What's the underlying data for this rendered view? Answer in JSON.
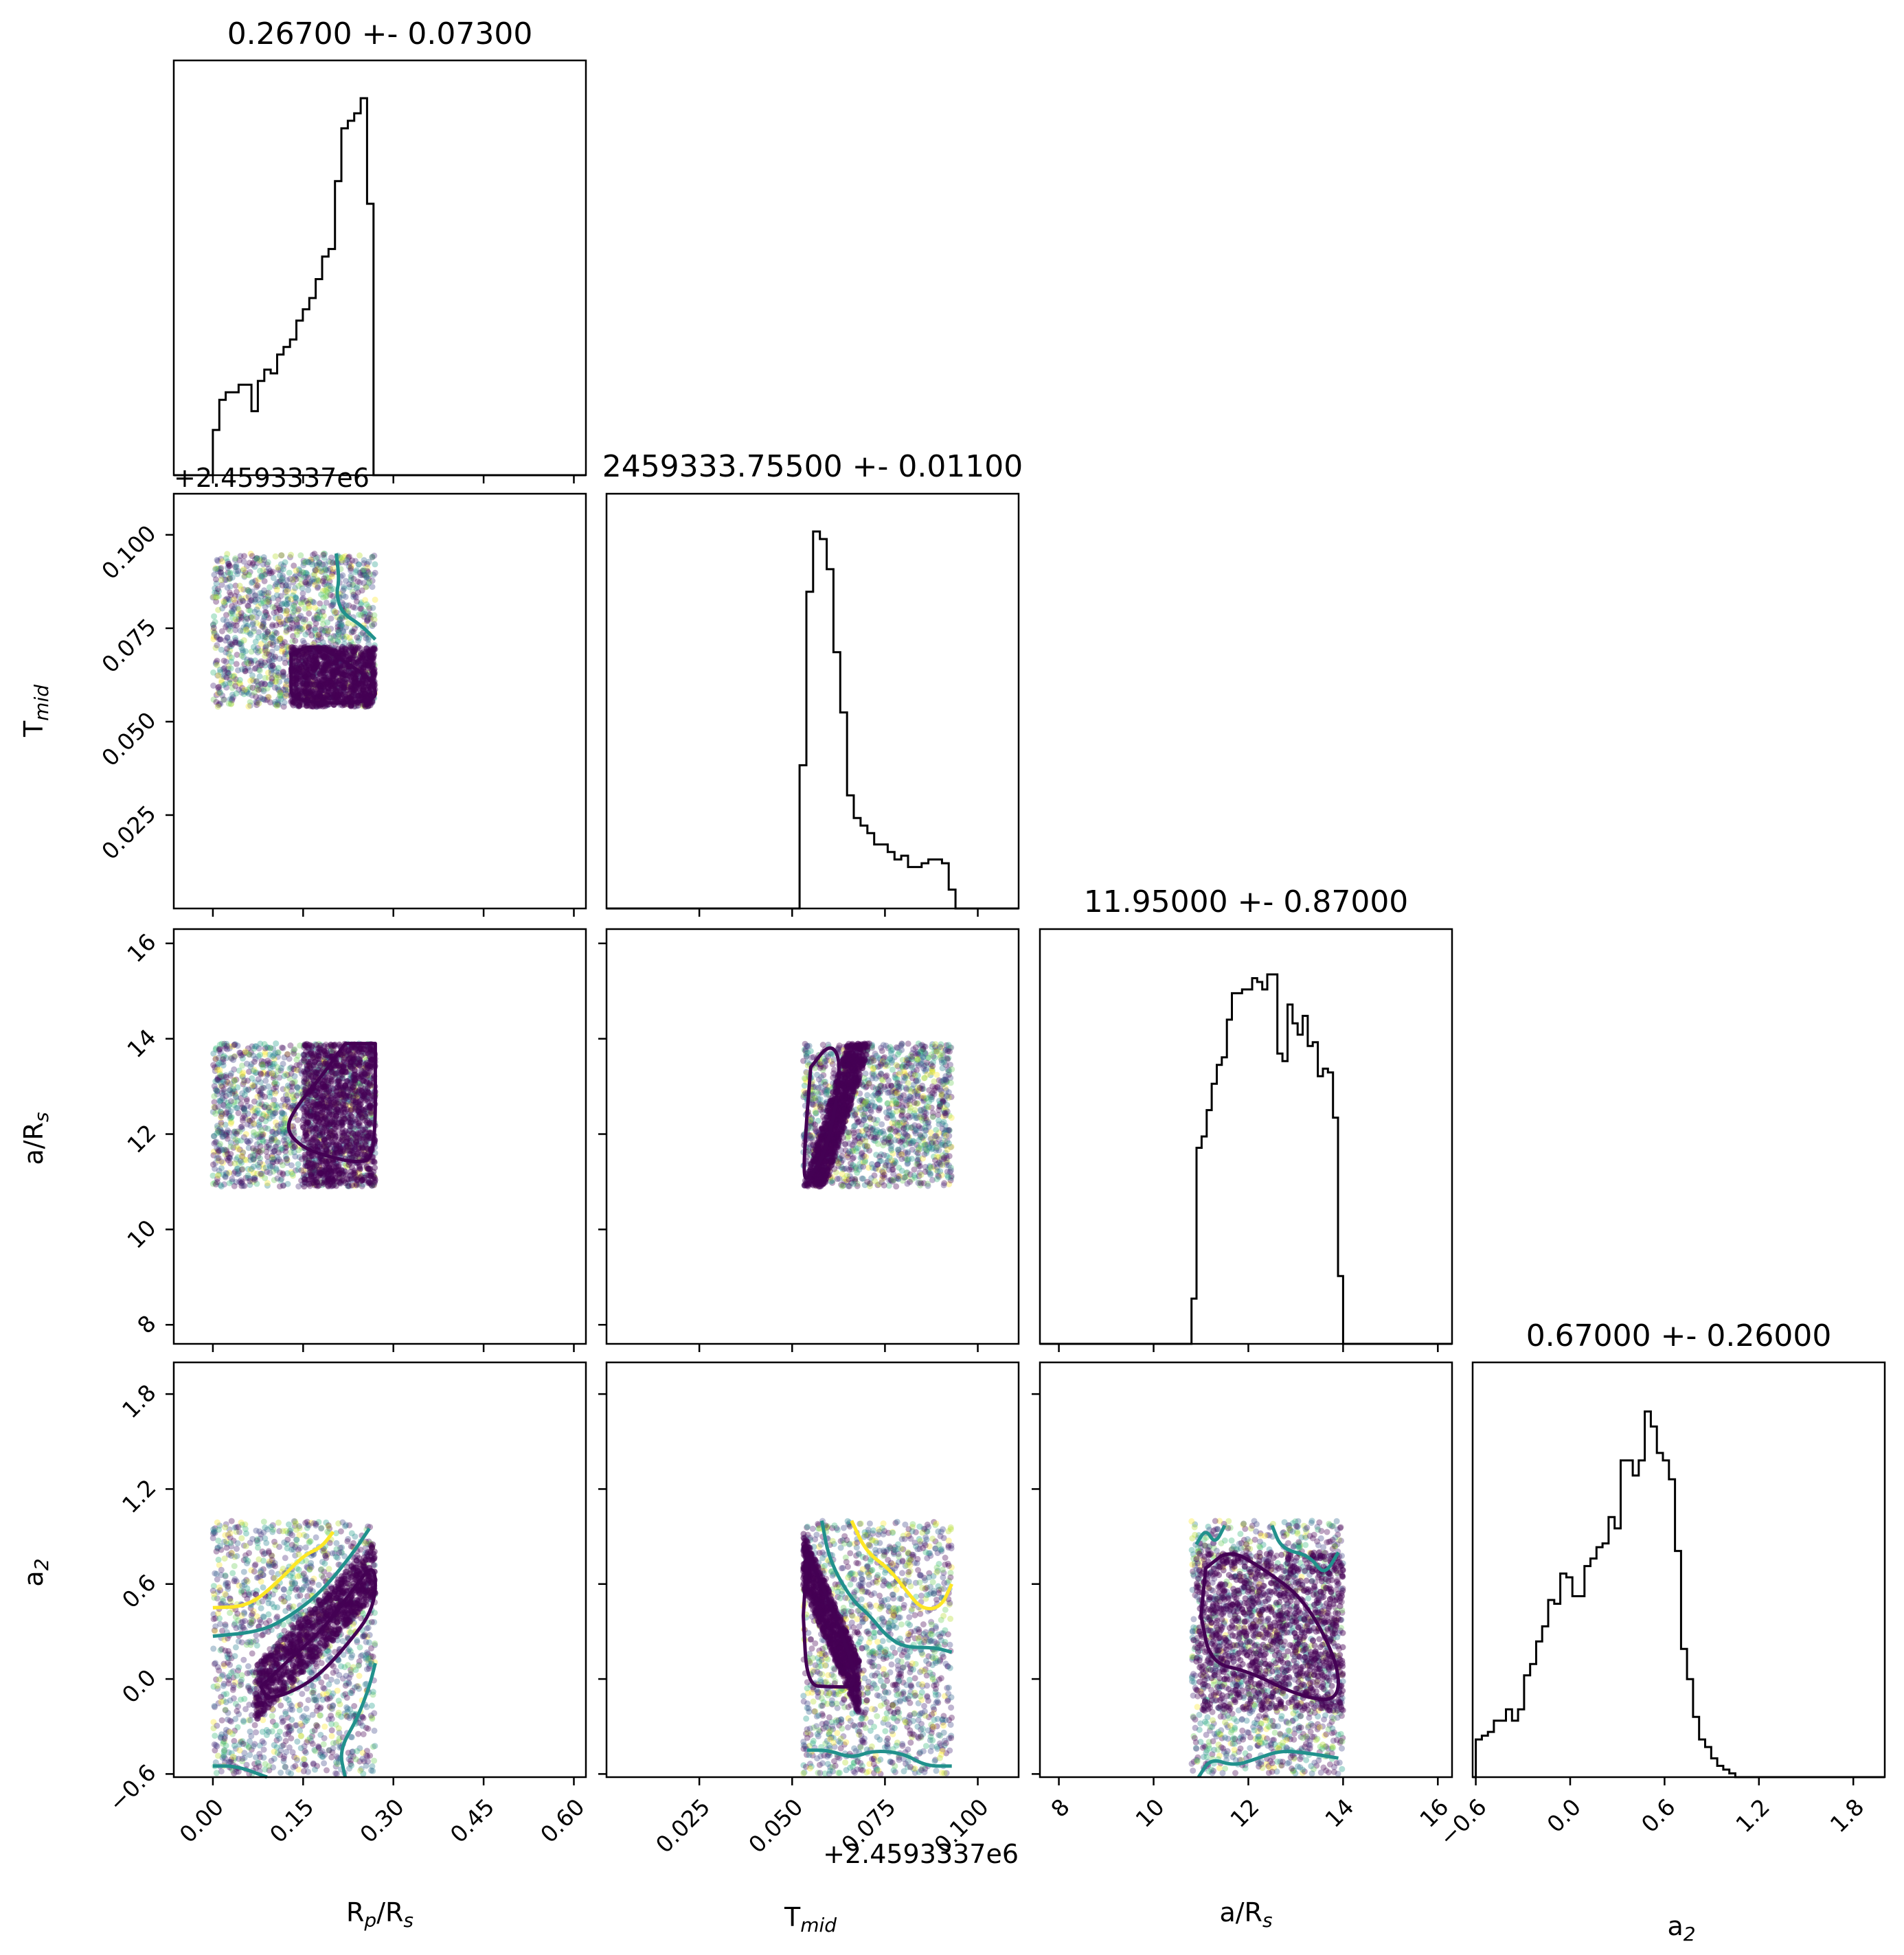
{
  "chart_data": {
    "type": "corner",
    "parameters": [
      {
        "key": "rp",
        "label_main": "R",
        "label_sub": "p",
        "label_rest": "/R",
        "label_sub2": "s",
        "mean": 0.267,
        "std": 0.073
      },
      {
        "key": "tmid",
        "label_main": "T",
        "label_sub": "mid",
        "label_rest": "",
        "label_sub2": "",
        "offset_text": "+2.4593337e6",
        "mean": 0.055,
        "std": 0.011
      },
      {
        "key": "ars",
        "label_main": "a/R",
        "label_sub": "s",
        "label_rest": "",
        "label_sub2": "",
        "mean": 11.95,
        "std": 0.87
      },
      {
        "key": "a2",
        "label_main": "a",
        "label_sub": "2",
        "label_rest": "",
        "label_sub2": "",
        "mean": 0.67,
        "std": 0.26
      }
    ],
    "titles": [
      "0.26700 +- 0.07300",
      "2459333.75500 +- 0.01100",
      "11.95000 +- 0.87000",
      "0.67000 +- 0.26000"
    ],
    "ranges": [
      [
        -0.065,
        0.62
      ],
      [
        0.0,
        0.111
      ],
      [
        7.6,
        16.3
      ],
      [
        -0.62,
        2.0
      ]
    ],
    "ticks": [
      [
        "0.00",
        "0.15",
        "0.30",
        "0.45",
        "0.60"
      ],
      [
        "0.025",
        "0.050",
        "0.075",
        "0.100"
      ],
      [
        "8",
        "10",
        "12",
        "14",
        "16"
      ],
      [
        "−0.6",
        "0.0",
        "0.6",
        "1.2",
        "1.8"
      ]
    ],
    "tick_values": [
      [
        0.0,
        0.15,
        0.3,
        0.45,
        0.6
      ],
      [
        0.025,
        0.05,
        0.075,
        0.1
      ],
      [
        8,
        10,
        12,
        14,
        16
      ],
      [
        -0.6,
        0.0,
        0.6,
        1.2,
        1.8
      ]
    ],
    "histograms": [
      {
        "edges_range": [
          0.0,
          0.267
        ],
        "counts": [
          0.12,
          0.2,
          0.22,
          0.22,
          0.24,
          0.24,
          0.17,
          0.25,
          0.28,
          0.27,
          0.32,
          0.34,
          0.36,
          0.41,
          0.44,
          0.47,
          0.52,
          0.58,
          0.6,
          0.78,
          0.92,
          0.94,
          0.96,
          1.0,
          0.72
        ]
      },
      {
        "edges_range": [
          0.052,
          0.094
        ],
        "counts": [
          0.38,
          0.84,
          1.0,
          0.98,
          0.9,
          0.68,
          0.52,
          0.3,
          0.24,
          0.22,
          0.2,
          0.17,
          0.17,
          0.15,
          0.13,
          0.14,
          0.11,
          0.11,
          0.12,
          0.13,
          0.13,
          0.12,
          0.05
        ]
      },
      {
        "edges_range": [
          10.8,
          14.0
        ],
        "counts": [
          0.12,
          0.52,
          0.55,
          0.62,
          0.69,
          0.74,
          0.76,
          0.86,
          0.93,
          0.93,
          0.94,
          0.94,
          0.97,
          0.96,
          0.94,
          0.98,
          0.98,
          0.77,
          0.75,
          0.9,
          0.85,
          0.82,
          0.87,
          0.79,
          0.8,
          0.71,
          0.73,
          0.72,
          0.6,
          0.18
        ]
      },
      {
        "edges_range": [
          -0.6,
          1.05
        ],
        "counts": [
          0.1,
          0.11,
          0.12,
          0.15,
          0.15,
          0.18,
          0.15,
          0.18,
          0.27,
          0.3,
          0.36,
          0.4,
          0.47,
          0.46,
          0.54,
          0.53,
          0.48,
          0.48,
          0.56,
          0.58,
          0.61,
          0.62,
          0.69,
          0.66,
          0.84,
          0.84,
          0.8,
          0.84,
          0.97,
          0.93,
          0.86,
          0.84,
          0.79,
          0.6,
          0.34,
          0.26,
          0.16,
          0.1,
          0.08,
          0.05,
          0.03,
          0.02,
          0.01
        ]
      }
    ],
    "scatter_panels": [
      {
        "row": 1,
        "col": 0,
        "xrange": [
          0.0,
          0.27
        ],
        "yrange": [
          0.054,
          0.095
        ],
        "dense": {
          "x": [
            0.13,
            0.27
          ],
          "y": [
            0.054,
            0.07
          ]
        }
      },
      {
        "row": 2,
        "col": 0,
        "xrange": [
          0.0,
          0.27
        ],
        "yrange": [
          10.9,
          13.9
        ],
        "dense": {
          "x": [
            0.15,
            0.27
          ],
          "y": [
            10.9,
            13.9
          ]
        }
      },
      {
        "row": 2,
        "col": 1,
        "xrange": [
          0.053,
          0.093
        ],
        "yrange": [
          10.9,
          13.9
        ],
        "dense": {
          "x": [
            0.053,
            0.065
          ],
          "y": [
            10.9,
            13.9
          ]
        }
      },
      {
        "row": 3,
        "col": 0,
        "xrange": [
          0.0,
          0.27
        ],
        "yrange": [
          -0.6,
          1.0
        ],
        "dense": {
          "x": [
            0.07,
            0.27
          ],
          "y": [
            -0.15,
            0.75
          ]
        }
      },
      {
        "row": 3,
        "col": 1,
        "xrange": [
          0.053,
          0.093
        ],
        "yrange": [
          -0.6,
          1.0
        ],
        "dense": {
          "x": [
            0.053,
            0.068
          ],
          "y": [
            -0.05,
            0.8
          ]
        }
      },
      {
        "row": 3,
        "col": 2,
        "xrange": [
          10.8,
          14.0
        ],
        "yrange": [
          -0.6,
          1.0
        ],
        "dense": {
          "x": [
            10.9,
            14.0
          ],
          "y": [
            -0.2,
            0.8
          ]
        }
      }
    ],
    "colors": {
      "line": "#000000",
      "dark": "#440154",
      "mid": "#3b528b",
      "teal": "#21918c",
      "green": "#5ec962",
      "yellow": "#fde725"
    }
  }
}
